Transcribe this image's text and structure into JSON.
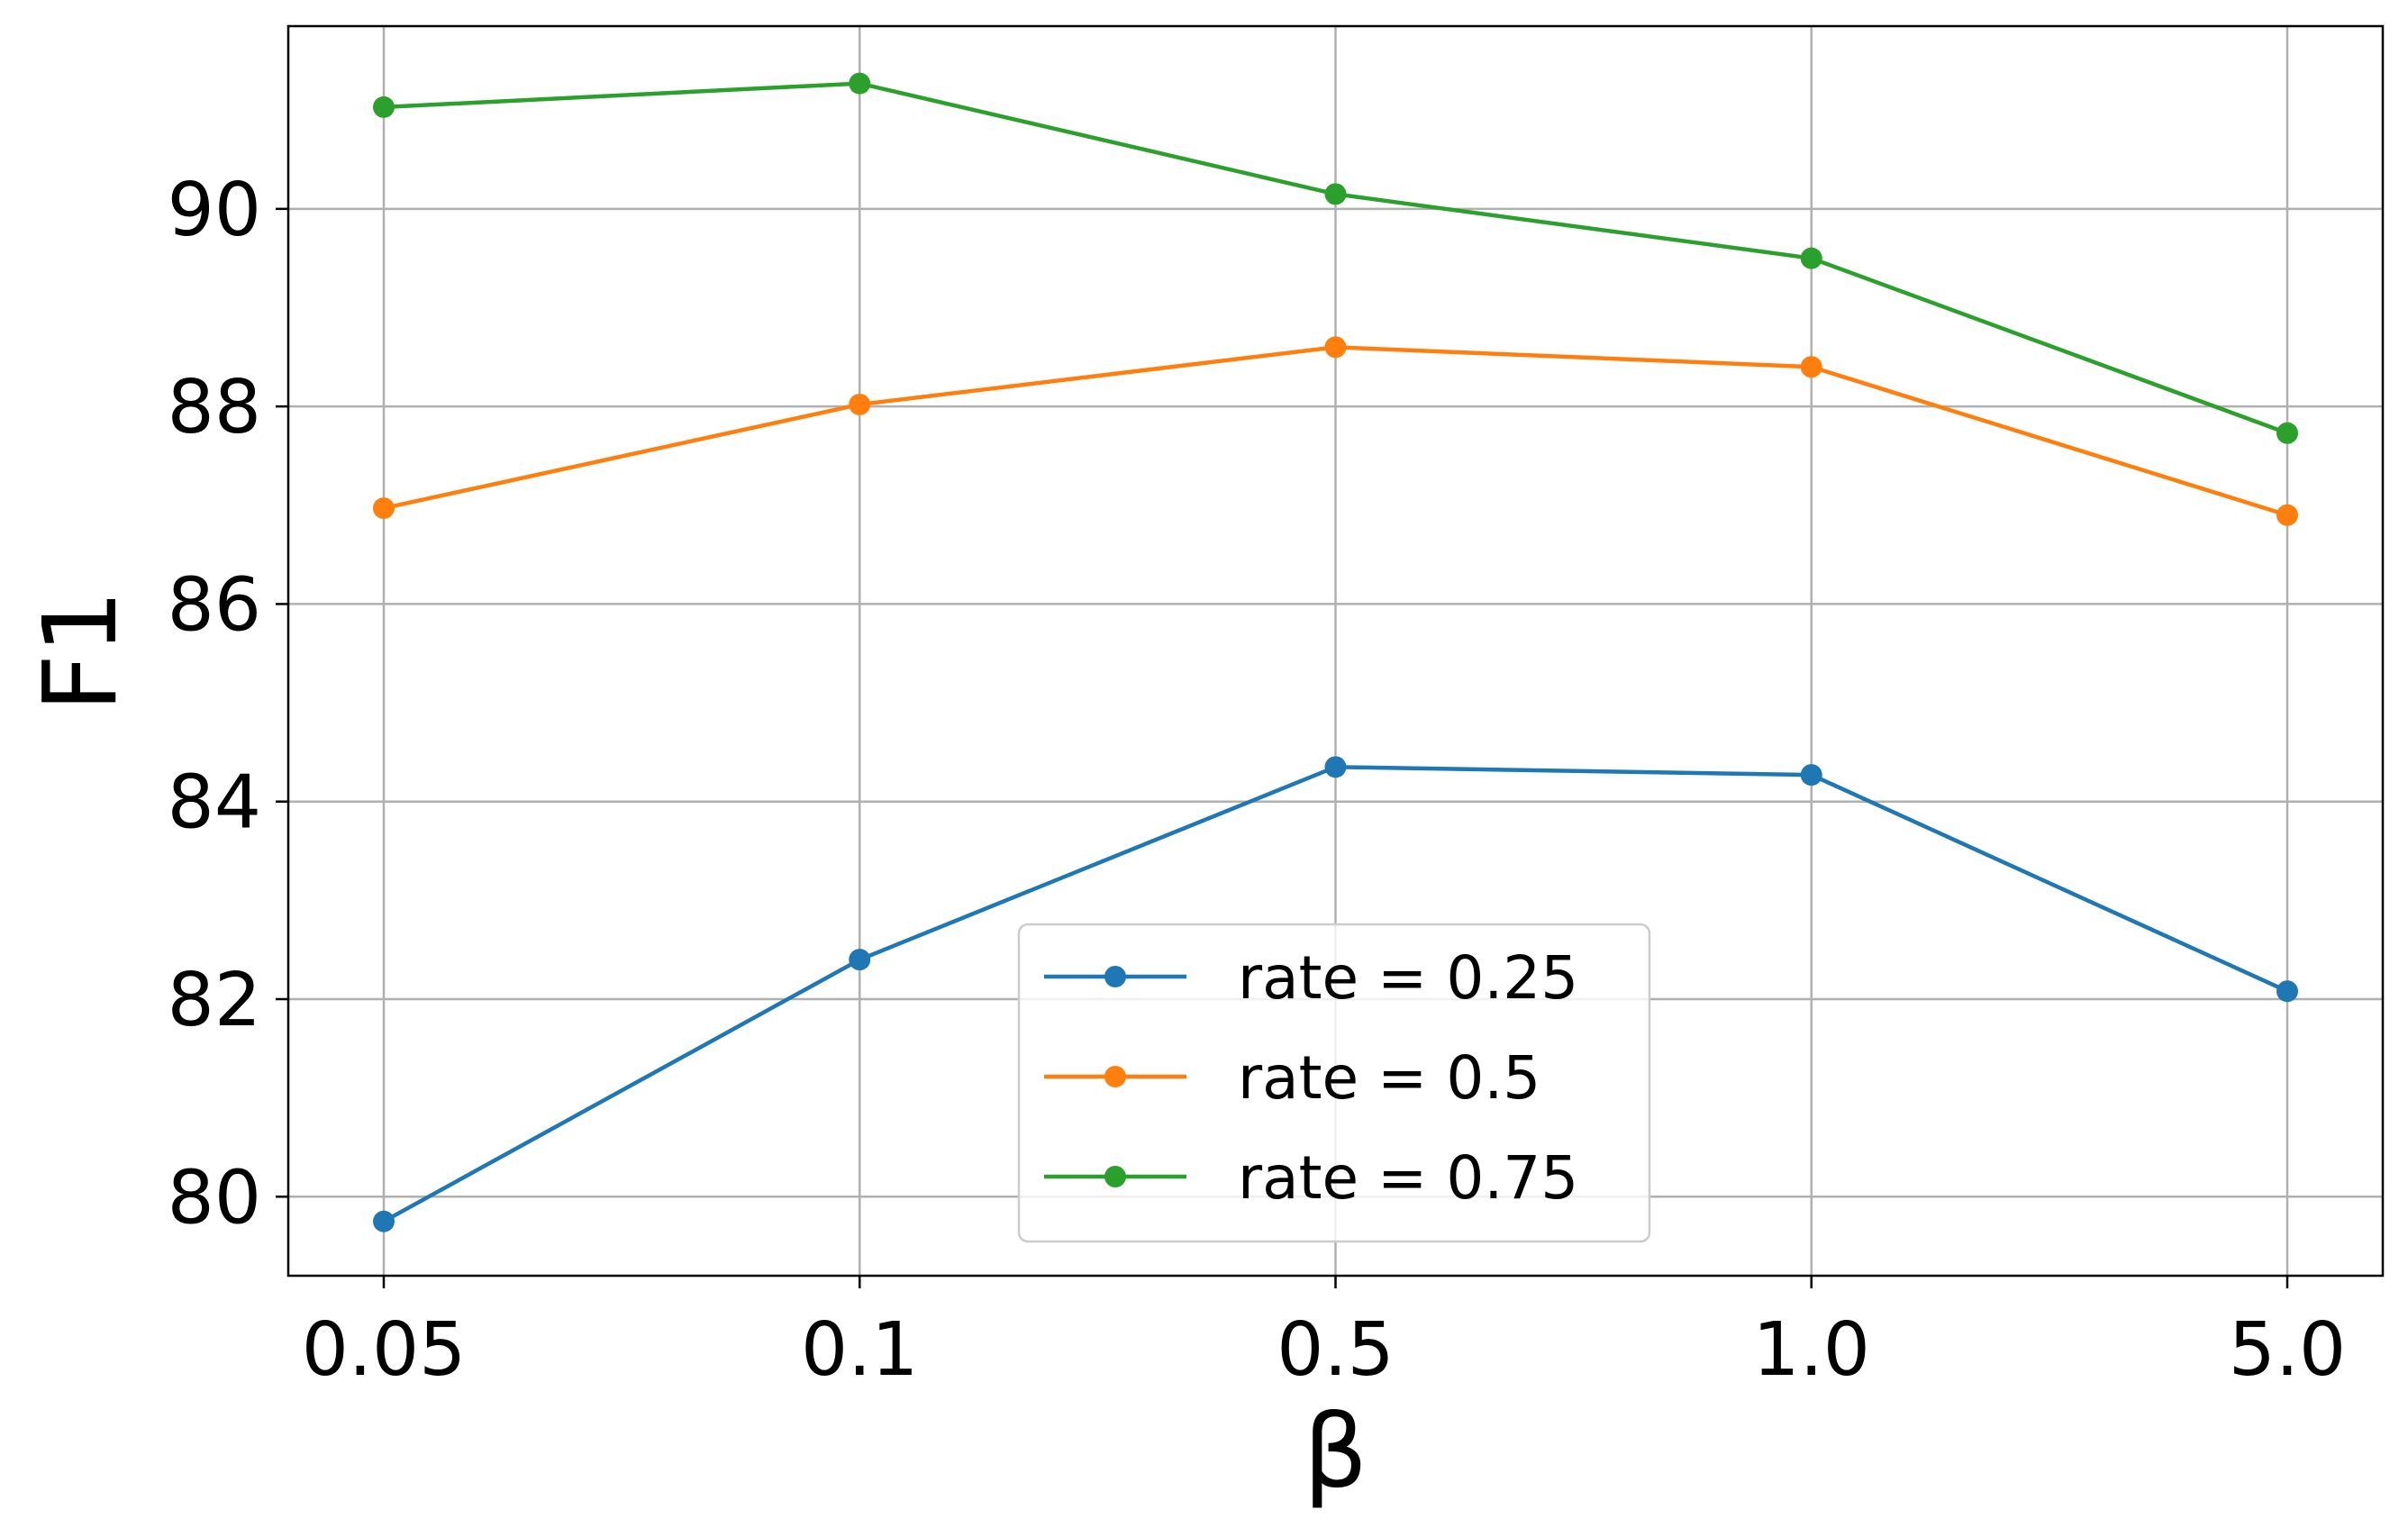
{
  "chart_data": {
    "type": "line",
    "title": "",
    "xlabel": "β",
    "ylabel": "F1",
    "categories": [
      "0.05",
      "0.1",
      "0.5",
      "1.0",
      "5.0"
    ],
    "yticks": [
      80,
      82,
      84,
      86,
      88,
      90
    ],
    "ylim": [
      79.2,
      91.85
    ],
    "grid": true,
    "legend_position": "lower-center",
    "series": [
      {
        "name": "rate = 0.25",
        "color": "#1f77b4",
        "values": [
          79.75,
          82.4,
          84.35,
          84.27,
          82.08
        ]
      },
      {
        "name": "rate = 0.5",
        "color": "#ff7f0e",
        "values": [
          86.97,
          88.02,
          88.6,
          88.4,
          86.9
        ]
      },
      {
        "name": "rate = 0.75",
        "color": "#2ca02c",
        "values": [
          91.03,
          91.27,
          90.15,
          89.5,
          87.73
        ]
      }
    ]
  }
}
